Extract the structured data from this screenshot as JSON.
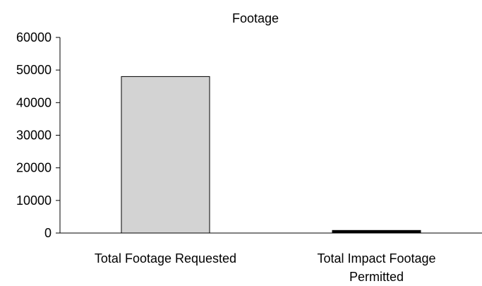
{
  "chart_data": {
    "type": "bar",
    "title": "Footage",
    "categories": [
      [
        "Total Footage Requested"
      ],
      [
        "Total Impact Footage",
        "Permitted"
      ]
    ],
    "values": [
      48000,
      800
    ],
    "bar_colors": [
      "#d3d3d3",
      "#000000"
    ],
    "ylim": [
      0,
      60000
    ],
    "yticks": [
      "0",
      "10000",
      "20000",
      "30000",
      "40000",
      "50000",
      "60000"
    ],
    "xlabel": "",
    "ylabel": "",
    "grid": false,
    "legend": "none"
  }
}
